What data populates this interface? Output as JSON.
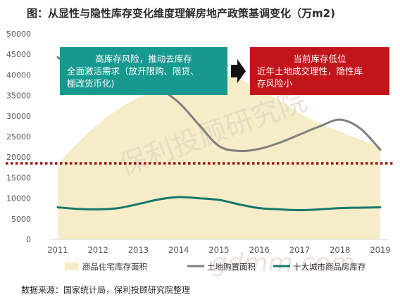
{
  "title": "图：从显性与隐性库存变化维度理解房地产政策基调变化（万m2)",
  "source": "数据来源：国家统计局，保利投顾研究院整理",
  "watermarks": [
    "保利投顾研究院",
    "gdmm.com"
  ],
  "annotations": {
    "left_box": [
      "高库存风险，推动去库存",
      "全面激活需求（放开限购、限贷、",
      "棚改货币化)"
    ],
    "right_box": [
      "当前库存低位",
      "近年土地成交理性，隐性库",
      "存风险小"
    ]
  },
  "colors": {
    "area": "#f6edc8",
    "land_line": "#7f7f7f",
    "city_line": "#17776c",
    "left_box": "#17998f",
    "right_box": "#c2151b",
    "arrow": "#111111",
    "dotted_line": "#a01212"
  },
  "chart_data": {
    "type": "line",
    "x": [
      2011,
      2012,
      2013,
      2014,
      2015,
      2016,
      2017,
      2018,
      2019
    ],
    "ylim": [
      0,
      50000
    ],
    "yticks": [
      0,
      5000,
      10000,
      15000,
      20000,
      25000,
      30000,
      35000,
      40000,
      45000,
      50000
    ],
    "xticks": [
      "2011",
      "2012",
      "2013",
      "2014",
      "2015",
      "2016",
      "2017",
      "2018",
      "2019"
    ],
    "reference_line": 18500,
    "series": [
      {
        "name": "商品住宅库存面积",
        "kind": "area",
        "x": [
          2011,
          2011.5,
          2012,
          2012.5,
          2013,
          2013.5,
          2014,
          2014.5,
          2015,
          2015.5,
          2016,
          2016.5,
          2017,
          2017.5,
          2018,
          2018.5,
          2019
        ],
        "values": [
          18200,
          23500,
          28000,
          31700,
          34500,
          36800,
          39200,
          40300,
          40400,
          39000,
          36500,
          33800,
          30700,
          28200,
          26200,
          24300,
          22500
        ]
      },
      {
        "name": "土地购置面积",
        "kind": "line",
        "x": [
          2011,
          2011.5,
          2012,
          2012.5,
          2013,
          2013.5,
          2014,
          2014.5,
          2015,
          2015.5,
          2016,
          2016.5,
          2017,
          2017.5,
          2018,
          2018.5,
          2019
        ],
        "values": [
          44300,
          40500,
          37500,
          37200,
          38600,
          36700,
          33300,
          27900,
          22700,
          21500,
          22000,
          23500,
          25500,
          27500,
          29100,
          27000,
          21800
        ]
      },
      {
        "name": "十大城市商品房库存",
        "kind": "line",
        "x": [
          2011,
          2011.5,
          2012,
          2012.5,
          2013,
          2013.5,
          2014,
          2014.5,
          2015,
          2015.5,
          2016,
          2016.5,
          2017,
          2017.5,
          2018,
          2018.5,
          2019
        ],
        "values": [
          7800,
          7400,
          7300,
          7600,
          8600,
          9700,
          10300,
          10000,
          9600,
          8500,
          7600,
          7300,
          7100,
          7300,
          7600,
          7700,
          7800
        ]
      }
    ],
    "legend": {
      "position": "bottom"
    },
    "grid": false
  }
}
